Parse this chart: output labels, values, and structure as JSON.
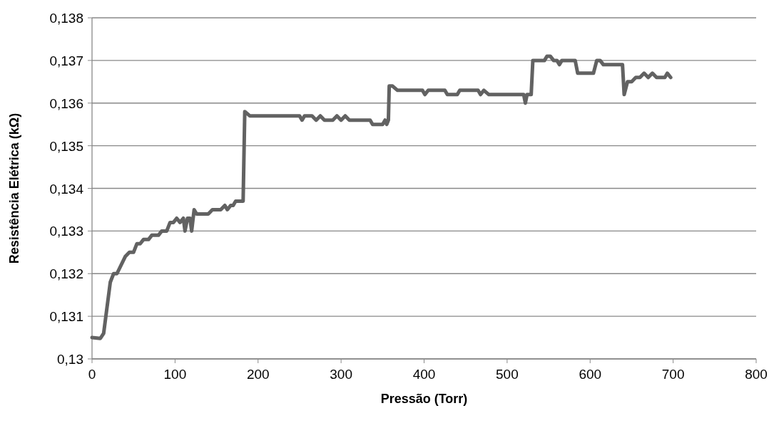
{
  "chart_data": {
    "type": "line",
    "xlabel": "Pressão (Torr)",
    "ylabel": "Resistência Elétrica (kΩ)",
    "xlim": [
      0,
      800
    ],
    "xticks": [
      0,
      100,
      200,
      300,
      400,
      500,
      600,
      700,
      800
    ],
    "ylim": [
      0.13,
      0.138
    ],
    "yticks": [
      {
        "value": 0.13,
        "label": "0,13"
      },
      {
        "value": 0.131,
        "label": "0,131"
      },
      {
        "value": 0.132,
        "label": "0,132"
      },
      {
        "value": 0.133,
        "label": "0,133"
      },
      {
        "value": 0.134,
        "label": "0,134"
      },
      {
        "value": 0.135,
        "label": "0,135"
      },
      {
        "value": 0.136,
        "label": "0,136"
      },
      {
        "value": 0.137,
        "label": "0,137"
      },
      {
        "value": 0.138,
        "label": "0,138"
      }
    ],
    "grid": "y",
    "marker": "none",
    "line_style": "solid",
    "series": [
      {
        "color": "#626262",
        "x": [
          0,
          10,
          14,
          18,
          22,
          26,
          30,
          40,
          45,
          50,
          54,
          58,
          62,
          68,
          72,
          80,
          84,
          90,
          94,
          98,
          102,
          106,
          110,
          112,
          115,
          118,
          120,
          123,
          126,
          140,
          145,
          155,
          160,
          163,
          167,
          170,
          173,
          182,
          184,
          190,
          250,
          253,
          256,
          265,
          270,
          275,
          280,
          290,
          295,
          300,
          305,
          310,
          335,
          338,
          350,
          353,
          355,
          357,
          358,
          362,
          368,
          398,
          401,
          405,
          425,
          428,
          440,
          443,
          465,
          468,
          472,
          478,
          520,
          522,
          524,
          529,
          531,
          535,
          540,
          545,
          548,
          552,
          556,
          560,
          563,
          566,
          570,
          582,
          585,
          600,
          604,
          608,
          612,
          616,
          620,
          636,
          639,
          641,
          645,
          650,
          655,
          660,
          665,
          670,
          675,
          680,
          685,
          690,
          693,
          697
        ],
        "values": [
          0.1305,
          0.13048,
          0.1306,
          0.1312,
          0.1318,
          0.132,
          0.132,
          0.1324,
          0.1325,
          0.1325,
          0.1327,
          0.1327,
          0.1328,
          0.1328,
          0.1329,
          0.1329,
          0.133,
          0.133,
          0.1332,
          0.1332,
          0.1333,
          0.1332,
          0.1333,
          0.133,
          0.1333,
          0.1333,
          0.133,
          0.1335,
          0.1334,
          0.1334,
          0.1335,
          0.1335,
          0.1336,
          0.1335,
          0.1336,
          0.1336,
          0.1337,
          0.1337,
          0.1358,
          0.1357,
          0.1357,
          0.1356,
          0.1357,
          0.1357,
          0.1356,
          0.1357,
          0.1356,
          0.1356,
          0.1357,
          0.1356,
          0.1357,
          0.1356,
          0.1356,
          0.1355,
          0.1355,
          0.1356,
          0.1355,
          0.1356,
          0.1364,
          0.1364,
          0.1363,
          0.1363,
          0.1362,
          0.1363,
          0.1363,
          0.1362,
          0.1362,
          0.1363,
          0.1363,
          0.1362,
          0.1363,
          0.1362,
          0.1362,
          0.136,
          0.1362,
          0.1362,
          0.137,
          0.137,
          0.137,
          0.137,
          0.1371,
          0.1371,
          0.137,
          0.137,
          0.1369,
          0.137,
          0.137,
          0.137,
          0.1367,
          0.1367,
          0.1367,
          0.137,
          0.137,
          0.1369,
          0.1369,
          0.1369,
          0.1369,
          0.1362,
          0.1365,
          0.1365,
          0.1366,
          0.1366,
          0.1367,
          0.1366,
          0.1367,
          0.1366,
          0.1366,
          0.1366,
          0.1367,
          0.1366
        ]
      }
    ]
  }
}
